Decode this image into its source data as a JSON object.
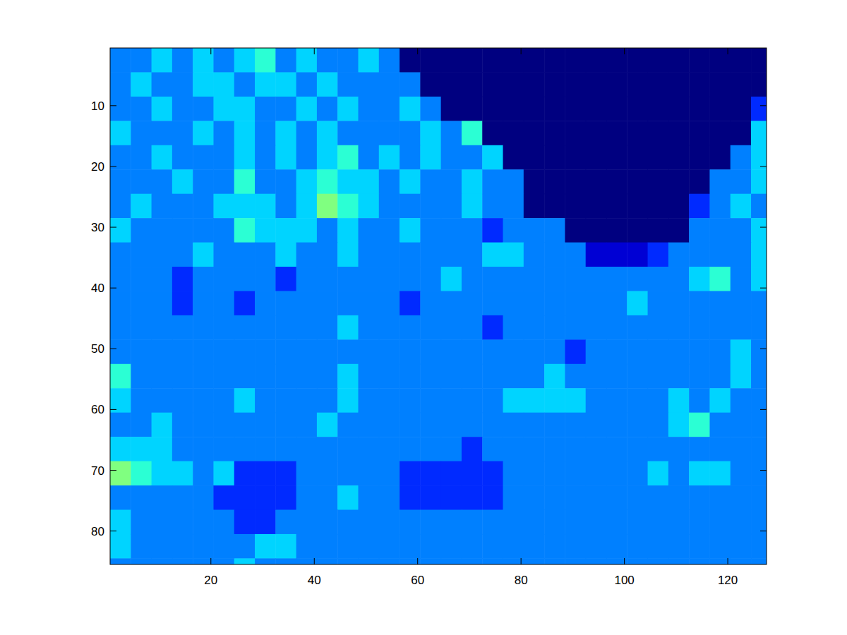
{
  "chart_data": {
    "type": "heatmap",
    "x": [
      2.5,
      6.5,
      10.5,
      14.5,
      18.5,
      22.5,
      26.5,
      30.5,
      34.5,
      38.5,
      42.5,
      46.5,
      50.5,
      54.5,
      58.5,
      62.5,
      66.5,
      70.5,
      74.5,
      78.5,
      82.5,
      86.5,
      90.5,
      94.5,
      98.5,
      102.5,
      106.5,
      110.5,
      114.5,
      118.5,
      122.5,
      126.5
    ],
    "y": [
      2.5,
      6.5,
      10.5,
      14.5,
      18.5,
      22.5,
      26.5,
      30.5,
      34.5,
      38.5,
      42.5,
      46.5,
      50.5,
      54.5,
      58.5,
      62.5,
      66.5,
      70.5,
      74.5,
      78.5,
      82.5,
      86.5
    ],
    "values": [
      [
        3,
        3,
        4,
        3,
        4,
        3,
        4,
        5,
        3,
        4,
        3,
        3,
        4,
        3,
        0,
        0,
        0,
        0,
        0,
        0,
        0,
        0,
        0,
        0,
        0,
        0,
        0,
        0,
        0,
        0,
        0,
        0
      ],
      [
        3,
        4,
        3,
        3,
        4,
        4,
        3,
        4,
        4,
        3,
        4,
        3,
        3,
        3,
        3,
        0,
        0,
        0,
        0,
        0,
        0,
        0,
        0,
        0,
        0,
        0,
        0,
        0,
        0,
        0,
        0,
        0
      ],
      [
        3,
        3,
        4,
        3,
        3,
        4,
        4,
        3,
        3,
        4,
        3,
        4,
        3,
        3,
        4,
        3,
        0,
        0,
        0,
        0,
        0,
        0,
        0,
        0,
        0,
        0,
        0,
        0,
        0,
        0,
        0,
        2
      ],
      [
        4,
        3,
        3,
        3,
        4,
        3,
        4,
        3,
        4,
        3,
        4,
        3,
        3,
        3,
        3,
        4,
        3,
        5,
        0,
        0,
        0,
        0,
        0,
        0,
        0,
        0,
        0,
        0,
        0,
        0,
        0,
        4
      ],
      [
        3,
        3,
        4,
        3,
        3,
        3,
        4,
        3,
        4,
        3,
        4,
        5,
        3,
        4,
        3,
        4,
        3,
        3,
        4,
        0,
        0,
        0,
        0,
        0,
        0,
        0,
        0,
        0,
        0,
        0,
        3,
        4
      ],
      [
        3,
        3,
        3,
        4,
        3,
        3,
        5,
        3,
        3,
        4,
        5,
        4,
        4,
        3,
        4,
        3,
        3,
        4,
        3,
        3,
        0,
        0,
        0,
        0,
        0,
        0,
        0,
        0,
        0,
        3,
        3,
        4
      ],
      [
        3,
        4,
        3,
        3,
        3,
        4,
        4,
        4,
        3,
        4,
        6,
        5,
        4,
        3,
        3,
        3,
        3,
        4,
        3,
        3,
        0,
        0,
        0,
        0,
        0,
        0,
        0,
        0,
        2,
        3,
        4,
        3
      ],
      [
        4,
        3,
        3,
        3,
        3,
        3,
        5,
        4,
        4,
        4,
        3,
        4,
        3,
        3,
        4,
        3,
        3,
        3,
        2,
        3,
        3,
        3,
        0,
        0,
        0,
        0,
        0,
        0,
        3,
        3,
        3,
        4
      ],
      [
        3,
        3,
        3,
        3,
        4,
        3,
        3,
        3,
        4,
        3,
        3,
        4,
        3,
        3,
        3,
        3,
        3,
        3,
        4,
        4,
        3,
        3,
        3,
        1,
        1,
        1,
        2,
        3,
        3,
        3,
        3,
        4
      ],
      [
        3,
        3,
        3,
        2,
        3,
        3,
        3,
        3,
        2,
        3,
        3,
        3,
        3,
        3,
        3,
        3,
        4,
        3,
        3,
        3,
        3,
        3,
        3,
        3,
        3,
        3,
        3,
        3,
        4,
        5,
        3,
        4
      ],
      [
        3,
        3,
        3,
        2,
        3,
        3,
        2,
        3,
        3,
        3,
        3,
        3,
        3,
        3,
        2,
        3,
        3,
        3,
        3,
        3,
        3,
        3,
        3,
        3,
        3,
        4,
        3,
        3,
        3,
        3,
        3,
        3
      ],
      [
        3,
        3,
        3,
        3,
        3,
        3,
        3,
        3,
        3,
        3,
        3,
        4,
        3,
        3,
        3,
        3,
        3,
        3,
        2,
        3,
        3,
        3,
        3,
        3,
        3,
        3,
        3,
        3,
        3,
        3,
        3,
        3
      ],
      [
        3,
        3,
        3,
        3,
        3,
        3,
        3,
        3,
        3,
        3,
        3,
        3,
        3,
        3,
        3,
        3,
        3,
        3,
        3,
        3,
        3,
        3,
        2,
        3,
        3,
        3,
        3,
        3,
        3,
        3,
        4,
        3
      ],
      [
        5,
        3,
        3,
        3,
        3,
        3,
        3,
        3,
        3,
        3,
        3,
        4,
        3,
        3,
        3,
        3,
        3,
        3,
        3,
        3,
        3,
        4,
        3,
        3,
        3,
        3,
        3,
        3,
        3,
        3,
        4,
        3
      ],
      [
        4,
        3,
        3,
        3,
        3,
        3,
        4,
        3,
        3,
        3,
        3,
        4,
        3,
        3,
        3,
        3,
        3,
        3,
        3,
        4,
        4,
        4,
        4,
        3,
        3,
        3,
        3,
        4,
        3,
        4,
        3,
        3
      ],
      [
        3,
        3,
        4,
        3,
        3,
        3,
        3,
        3,
        3,
        3,
        4,
        3,
        3,
        3,
        3,
        3,
        3,
        3,
        3,
        3,
        3,
        3,
        3,
        3,
        3,
        3,
        3,
        4,
        5,
        3,
        3,
        3
      ],
      [
        4,
        4,
        4,
        3,
        3,
        3,
        3,
        3,
        3,
        3,
        3,
        3,
        3,
        3,
        3,
        3,
        3,
        2,
        3,
        3,
        3,
        3,
        3,
        3,
        3,
        3,
        3,
        3,
        3,
        3,
        3,
        3
      ],
      [
        6,
        5,
        4,
        4,
        3,
        4,
        2,
        2,
        2,
        3,
        3,
        3,
        3,
        3,
        2,
        2,
        2,
        2,
        2,
        3,
        3,
        3,
        3,
        3,
        3,
        3,
        4,
        3,
        4,
        4,
        3,
        3
      ],
      [
        3,
        3,
        3,
        3,
        3,
        2,
        2,
        2,
        2,
        3,
        3,
        4,
        3,
        3,
        2,
        2,
        2,
        2,
        2,
        3,
        3,
        3,
        3,
        3,
        3,
        3,
        3,
        3,
        3,
        3,
        3,
        3
      ],
      [
        4,
        3,
        3,
        3,
        3,
        3,
        2,
        2,
        3,
        3,
        3,
        3,
        3,
        3,
        3,
        3,
        3,
        3,
        3,
        3,
        3,
        3,
        3,
        3,
        3,
        3,
        3,
        3,
        3,
        3,
        3,
        3
      ],
      [
        4,
        3,
        3,
        3,
        3,
        3,
        3,
        4,
        4,
        3,
        3,
        3,
        3,
        3,
        3,
        3,
        3,
        3,
        3,
        3,
        3,
        3,
        3,
        3,
        3,
        3,
        3,
        3,
        3,
        3,
        3,
        3
      ],
      [
        3,
        3,
        3,
        3,
        3,
        3,
        4,
        3,
        3,
        3,
        3,
        3,
        3,
        3,
        3,
        3,
        3,
        3,
        3,
        3,
        3,
        3,
        3,
        3,
        3,
        3,
        3,
        3,
        3,
        3,
        3,
        3
      ]
    ],
    "color_range": [
      0,
      12
    ],
    "xlim": [
      0.5,
      127.5
    ],
    "ylim": [
      85.5,
      0.5
    ],
    "xticks": [
      20,
      40,
      60,
      80,
      100,
      120
    ],
    "yticks": [
      10,
      20,
      30,
      40,
      50,
      60,
      70,
      80
    ]
  }
}
